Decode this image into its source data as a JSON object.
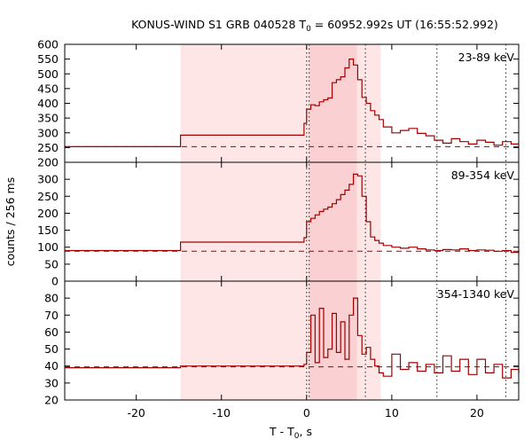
{
  "chart_data": {
    "type": "line",
    "title": "KONUS-WIND S1 GRB 040528 T",
    "title_sub": "0",
    "title_rest": " = 60952.992s UT (16:55:52.992)",
    "xlabel_main": "T - T",
    "xlabel_sub": "0",
    "xlabel_rest": ", s",
    "ylabel": "counts / 256 ms",
    "xlim": [
      -28.4,
      24.9
    ],
    "x_ticks": [
      -20,
      -10,
      0,
      10,
      20
    ],
    "x_tick_labels": [
      "-20",
      "-10",
      "0",
      "10",
      "20"
    ],
    "shaded_intervals": [
      {
        "from": -14.8,
        "to": 8.7,
        "level": "light",
        "color": "#ffe6e6"
      },
      {
        "from": 0.3,
        "to": 5.9,
        "level": "medium",
        "color": "#fbd0d3"
      }
    ],
    "vertical_lines": [
      {
        "x": 0.0,
        "style": "dotted"
      },
      {
        "x": 0.3,
        "style": "dotted"
      },
      {
        "x": 6.9,
        "style": "dotted"
      },
      {
        "x": 15.3,
        "style": "dotted"
      },
      {
        "x": 23.4,
        "style": "dotted"
      }
    ],
    "line_color": "#a00000",
    "panels": [
      {
        "label": "23-89 keV",
        "ylim": [
          200,
          600
        ],
        "y_ticks": [
          200,
          250,
          300,
          350,
          400,
          450,
          500,
          550,
          600
        ],
        "y_tick_labels": [
          "200",
          "250",
          "300",
          "350",
          "400",
          "450",
          "500",
          "550",
          "600"
        ],
        "background": 253,
        "x": [
          -28.4,
          -14.8,
          -0.3,
          0.0,
          0.5,
          1.0,
          1.5,
          2.0,
          2.5,
          3.0,
          3.5,
          4.0,
          4.5,
          5.0,
          5.5,
          6.0,
          6.5,
          7.0,
          7.5,
          8.0,
          8.5,
          9.0,
          10.0,
          11.0,
          12.0,
          13.0,
          14.0,
          15.0,
          16.0,
          17.0,
          18.0,
          19.0,
          20.0,
          21.0,
          22.0,
          23.0,
          24.0,
          24.9
        ],
        "y": [
          253,
          292,
          332,
          380,
          395,
          392,
          405,
          412,
          418,
          470,
          480,
          490,
          520,
          550,
          530,
          480,
          420,
          400,
          375,
          360,
          345,
          320,
          300,
          308,
          315,
          298,
          290,
          275,
          265,
          280,
          270,
          262,
          275,
          268,
          258,
          270,
          262,
          262
        ]
      },
      {
        "label": "89-354 keV",
        "ylim": [
          0,
          350
        ],
        "y_ticks": [
          0,
          50,
          100,
          150,
          200,
          250,
          300
        ],
        "y_tick_labels": [
          "0",
          "50",
          "100",
          "150",
          "200",
          "250",
          "300"
        ],
        "background": 88,
        "x": [
          -28.4,
          -14.8,
          -0.3,
          0.0,
          0.5,
          1.0,
          1.5,
          2.0,
          2.5,
          3.0,
          3.5,
          4.0,
          4.5,
          5.0,
          5.5,
          6.0,
          6.5,
          7.0,
          7.5,
          8.0,
          8.5,
          9.0,
          10.0,
          11.0,
          12.0,
          13.0,
          14.0,
          15.0,
          16.0,
          17.0,
          18.0,
          19.0,
          20.0,
          21.0,
          22.0,
          23.0,
          24.0,
          24.9
        ],
        "y": [
          90,
          115,
          128,
          175,
          185,
          195,
          205,
          212,
          218,
          228,
          240,
          255,
          268,
          285,
          315,
          310,
          250,
          175,
          130,
          120,
          112,
          105,
          100,
          97,
          100,
          95,
          92,
          90,
          93,
          92,
          95,
          90,
          92,
          91,
          88,
          90,
          85,
          90
        ]
      },
      {
        "label": "354-1340 keV",
        "ylim": [
          20,
          90
        ],
        "y_ticks": [
          20,
          30,
          40,
          50,
          60,
          70,
          80
        ],
        "y_tick_labels": [
          "20",
          "30",
          "40",
          "50",
          "60",
          "70",
          "80"
        ],
        "background": 39.5,
        "x": [
          -28.4,
          -14.8,
          -0.3,
          0.0,
          0.5,
          1.0,
          1.5,
          2.0,
          2.5,
          3.0,
          3.5,
          4.0,
          4.5,
          5.0,
          5.5,
          6.0,
          6.5,
          7.0,
          7.5,
          8.0,
          8.5,
          9.0,
          10.0,
          11.0,
          12.0,
          13.0,
          14.0,
          15.0,
          16.0,
          17.0,
          18.0,
          19.0,
          20.0,
          21.0,
          22.0,
          23.0,
          24.0,
          24.9
        ],
        "y": [
          39,
          40,
          41,
          48,
          70,
          42,
          74,
          45,
          50,
          71,
          48,
          66,
          44,
          70,
          80,
          58,
          47,
          51,
          44,
          40,
          36,
          34,
          47,
          38,
          42,
          37,
          41,
          36,
          46,
          37,
          44,
          35,
          44,
          36,
          41,
          33,
          38,
          36
        ]
      }
    ]
  }
}
